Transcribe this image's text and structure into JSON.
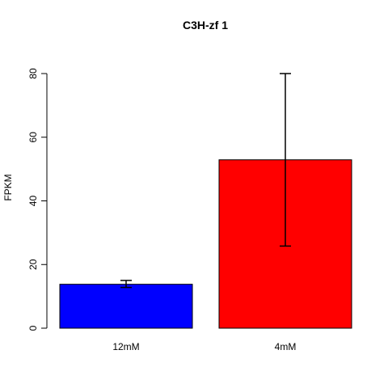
{
  "chart_data": {
    "type": "bar",
    "title": "C3H-zf 1",
    "xlabel": "",
    "ylabel": "FPKM",
    "categories": [
      "12mM",
      "4mM"
    ],
    "values": [
      13.8,
      52.9
    ],
    "error_low": [
      12.8,
      25.8
    ],
    "error_high": [
      15.0,
      80.0
    ],
    "colors": [
      "#0000ff",
      "#ff0000"
    ],
    "ylim": [
      0,
      80
    ],
    "yticks": [
      0,
      20,
      40,
      60,
      80
    ],
    "grid": false,
    "legend": "none"
  }
}
